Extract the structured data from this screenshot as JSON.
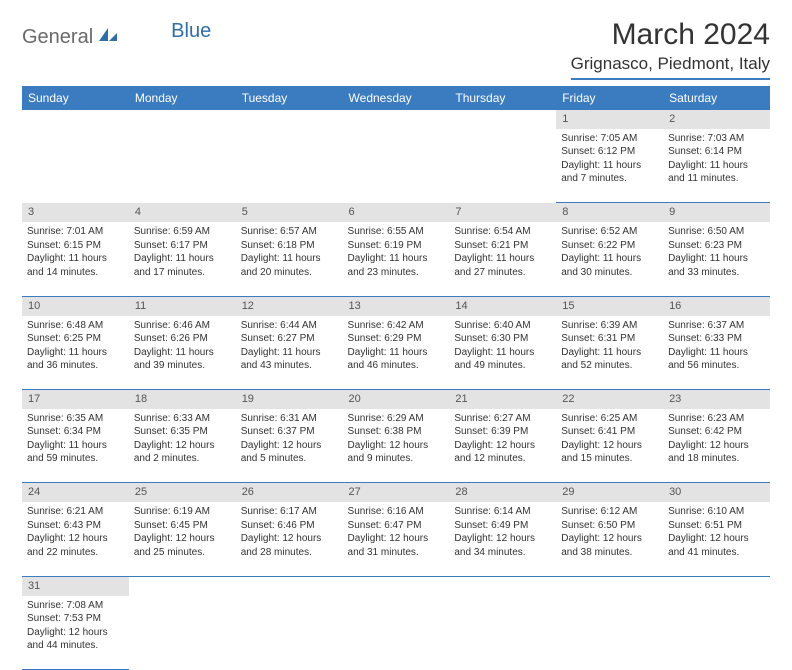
{
  "brand": {
    "part1": "General",
    "part2": "Blue"
  },
  "title": "March 2024",
  "location": "Grignasco, Piedmont, Italy",
  "colors": {
    "header_bg": "#3b7bbf",
    "header_text": "#ffffff",
    "daynum_bg": "#e3e3e3",
    "rule": "#3b7bbf",
    "brand_gray": "#6a6a6a",
    "brand_blue": "#2f6fa8"
  },
  "weekdays": [
    "Sunday",
    "Monday",
    "Tuesday",
    "Wednesday",
    "Thursday",
    "Friday",
    "Saturday"
  ],
  "weeks": [
    {
      "nums": [
        "",
        "",
        "",
        "",
        "",
        "1",
        "2"
      ],
      "cells": [
        null,
        null,
        null,
        null,
        null,
        {
          "sunrise": "Sunrise: 7:05 AM",
          "sunset": "Sunset: 6:12 PM",
          "day1": "Daylight: 11 hours",
          "day2": "and 7 minutes."
        },
        {
          "sunrise": "Sunrise: 7:03 AM",
          "sunset": "Sunset: 6:14 PM",
          "day1": "Daylight: 11 hours",
          "day2": "and 11 minutes."
        }
      ]
    },
    {
      "nums": [
        "3",
        "4",
        "5",
        "6",
        "7",
        "8",
        "9"
      ],
      "cells": [
        {
          "sunrise": "Sunrise: 7:01 AM",
          "sunset": "Sunset: 6:15 PM",
          "day1": "Daylight: 11 hours",
          "day2": "and 14 minutes."
        },
        {
          "sunrise": "Sunrise: 6:59 AM",
          "sunset": "Sunset: 6:17 PM",
          "day1": "Daylight: 11 hours",
          "day2": "and 17 minutes."
        },
        {
          "sunrise": "Sunrise: 6:57 AM",
          "sunset": "Sunset: 6:18 PM",
          "day1": "Daylight: 11 hours",
          "day2": "and 20 minutes."
        },
        {
          "sunrise": "Sunrise: 6:55 AM",
          "sunset": "Sunset: 6:19 PM",
          "day1": "Daylight: 11 hours",
          "day2": "and 23 minutes."
        },
        {
          "sunrise": "Sunrise: 6:54 AM",
          "sunset": "Sunset: 6:21 PM",
          "day1": "Daylight: 11 hours",
          "day2": "and 27 minutes."
        },
        {
          "sunrise": "Sunrise: 6:52 AM",
          "sunset": "Sunset: 6:22 PM",
          "day1": "Daylight: 11 hours",
          "day2": "and 30 minutes."
        },
        {
          "sunrise": "Sunrise: 6:50 AM",
          "sunset": "Sunset: 6:23 PM",
          "day1": "Daylight: 11 hours",
          "day2": "and 33 minutes."
        }
      ]
    },
    {
      "nums": [
        "10",
        "11",
        "12",
        "13",
        "14",
        "15",
        "16"
      ],
      "cells": [
        {
          "sunrise": "Sunrise: 6:48 AM",
          "sunset": "Sunset: 6:25 PM",
          "day1": "Daylight: 11 hours",
          "day2": "and 36 minutes."
        },
        {
          "sunrise": "Sunrise: 6:46 AM",
          "sunset": "Sunset: 6:26 PM",
          "day1": "Daylight: 11 hours",
          "day2": "and 39 minutes."
        },
        {
          "sunrise": "Sunrise: 6:44 AM",
          "sunset": "Sunset: 6:27 PM",
          "day1": "Daylight: 11 hours",
          "day2": "and 43 minutes."
        },
        {
          "sunrise": "Sunrise: 6:42 AM",
          "sunset": "Sunset: 6:29 PM",
          "day1": "Daylight: 11 hours",
          "day2": "and 46 minutes."
        },
        {
          "sunrise": "Sunrise: 6:40 AM",
          "sunset": "Sunset: 6:30 PM",
          "day1": "Daylight: 11 hours",
          "day2": "and 49 minutes."
        },
        {
          "sunrise": "Sunrise: 6:39 AM",
          "sunset": "Sunset: 6:31 PM",
          "day1": "Daylight: 11 hours",
          "day2": "and 52 minutes."
        },
        {
          "sunrise": "Sunrise: 6:37 AM",
          "sunset": "Sunset: 6:33 PM",
          "day1": "Daylight: 11 hours",
          "day2": "and 56 minutes."
        }
      ]
    },
    {
      "nums": [
        "17",
        "18",
        "19",
        "20",
        "21",
        "22",
        "23"
      ],
      "cells": [
        {
          "sunrise": "Sunrise: 6:35 AM",
          "sunset": "Sunset: 6:34 PM",
          "day1": "Daylight: 11 hours",
          "day2": "and 59 minutes."
        },
        {
          "sunrise": "Sunrise: 6:33 AM",
          "sunset": "Sunset: 6:35 PM",
          "day1": "Daylight: 12 hours",
          "day2": "and 2 minutes."
        },
        {
          "sunrise": "Sunrise: 6:31 AM",
          "sunset": "Sunset: 6:37 PM",
          "day1": "Daylight: 12 hours",
          "day2": "and 5 minutes."
        },
        {
          "sunrise": "Sunrise: 6:29 AM",
          "sunset": "Sunset: 6:38 PM",
          "day1": "Daylight: 12 hours",
          "day2": "and 9 minutes."
        },
        {
          "sunrise": "Sunrise: 6:27 AM",
          "sunset": "Sunset: 6:39 PM",
          "day1": "Daylight: 12 hours",
          "day2": "and 12 minutes."
        },
        {
          "sunrise": "Sunrise: 6:25 AM",
          "sunset": "Sunset: 6:41 PM",
          "day1": "Daylight: 12 hours",
          "day2": "and 15 minutes."
        },
        {
          "sunrise": "Sunrise: 6:23 AM",
          "sunset": "Sunset: 6:42 PM",
          "day1": "Daylight: 12 hours",
          "day2": "and 18 minutes."
        }
      ]
    },
    {
      "nums": [
        "24",
        "25",
        "26",
        "27",
        "28",
        "29",
        "30"
      ],
      "cells": [
        {
          "sunrise": "Sunrise: 6:21 AM",
          "sunset": "Sunset: 6:43 PM",
          "day1": "Daylight: 12 hours",
          "day2": "and 22 minutes."
        },
        {
          "sunrise": "Sunrise: 6:19 AM",
          "sunset": "Sunset: 6:45 PM",
          "day1": "Daylight: 12 hours",
          "day2": "and 25 minutes."
        },
        {
          "sunrise": "Sunrise: 6:17 AM",
          "sunset": "Sunset: 6:46 PM",
          "day1": "Daylight: 12 hours",
          "day2": "and 28 minutes."
        },
        {
          "sunrise": "Sunrise: 6:16 AM",
          "sunset": "Sunset: 6:47 PM",
          "day1": "Daylight: 12 hours",
          "day2": "and 31 minutes."
        },
        {
          "sunrise": "Sunrise: 6:14 AM",
          "sunset": "Sunset: 6:49 PM",
          "day1": "Daylight: 12 hours",
          "day2": "and 34 minutes."
        },
        {
          "sunrise": "Sunrise: 6:12 AM",
          "sunset": "Sunset: 6:50 PM",
          "day1": "Daylight: 12 hours",
          "day2": "and 38 minutes."
        },
        {
          "sunrise": "Sunrise: 6:10 AM",
          "sunset": "Sunset: 6:51 PM",
          "day1": "Daylight: 12 hours",
          "day2": "and 41 minutes."
        }
      ]
    },
    {
      "nums": [
        "31",
        "",
        "",
        "",
        "",
        "",
        ""
      ],
      "cells": [
        {
          "sunrise": "Sunrise: 7:08 AM",
          "sunset": "Sunset: 7:53 PM",
          "day1": "Daylight: 12 hours",
          "day2": "and 44 minutes."
        },
        null,
        null,
        null,
        null,
        null,
        null
      ]
    }
  ]
}
